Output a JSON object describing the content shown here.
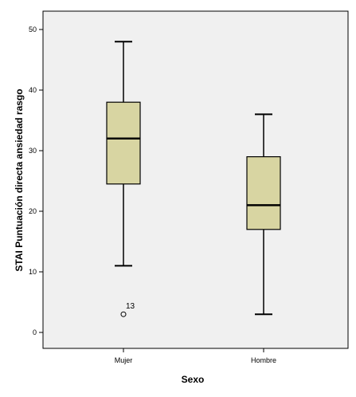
{
  "chart_data": {
    "type": "boxplot",
    "title": "",
    "xlabel": "Sexo",
    "ylabel": "STAI Puntuación directa ansiedad rasgo",
    "ylim": [
      -2,
      52
    ],
    "yticks": [
      0,
      10,
      20,
      30,
      40,
      50
    ],
    "grid": false,
    "categories": [
      "Mujer",
      "Hombre"
    ],
    "boxes": [
      {
        "category": "Mujer",
        "min": 11,
        "q1": 24.5,
        "median": 32,
        "q3": 38,
        "max": 48,
        "outliers": [
          {
            "value": 3,
            "label": "13"
          }
        ]
      },
      {
        "category": "Hombre",
        "min": 3,
        "q1": 17,
        "median": 21,
        "q3": 29,
        "max": 36,
        "outliers": []
      }
    ],
    "colors": {
      "box_fill": "#d8d5a2",
      "plot_background": "#f0f0f0",
      "stroke": "#000000"
    }
  }
}
